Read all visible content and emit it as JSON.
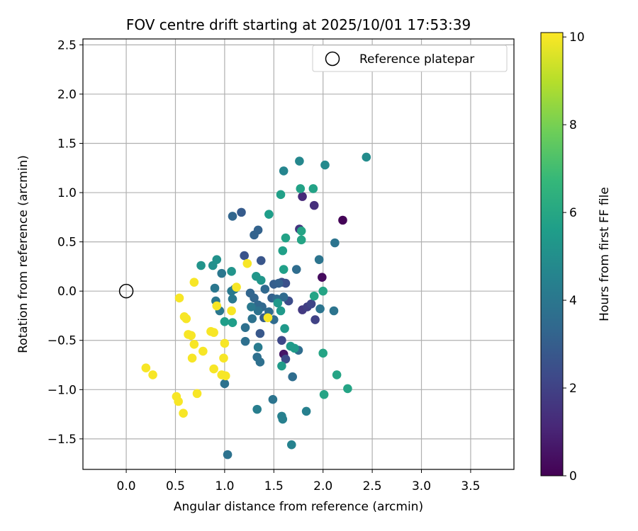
{
  "chart_data": {
    "type": "scatter",
    "title": "FOV centre drift starting at 2025/10/01 17:53:39",
    "xlabel": "Angular distance from reference (arcmin)",
    "ylabel": "Rotation from reference (arcmin)",
    "xlim": [
      -0.44,
      3.94
    ],
    "ylim": [
      -1.81,
      2.56
    ],
    "xticks": [
      0.0,
      0.5,
      1.0,
      1.5,
      2.0,
      2.5,
      3.0,
      3.5
    ],
    "xtick_labels": [
      "0.0",
      "0.5",
      "1.0",
      "1.5",
      "2.0",
      "2.5",
      "3.0",
      "3.5"
    ],
    "yticks": [
      -1.5,
      -1.0,
      -0.5,
      0.0,
      0.5,
      1.0,
      1.5,
      2.0,
      2.5
    ],
    "ytick_labels": [
      "−1.5",
      "−1.0",
      "−0.5",
      "0.0",
      "0.5",
      "1.0",
      "1.5",
      "2.0",
      "2.5"
    ],
    "grid": true,
    "legend": {
      "placement": "top-right",
      "entries": [
        "Reference platepar"
      ]
    },
    "reference_point": {
      "label": "Reference platepar",
      "x": 0.0,
      "y": 0.0
    },
    "colorbar": {
      "label": "Hours from first FF file",
      "colormap": "viridis",
      "range": [
        0,
        10.1
      ],
      "ticks": [
        0,
        2,
        4,
        6,
        8,
        10
      ],
      "tick_labels": [
        "0",
        "2",
        "4",
        "6",
        "8",
        "10"
      ]
    },
    "colormap_stops": [
      "#440154",
      "#482878",
      "#3e4989",
      "#31688e",
      "#26828e",
      "#1f9e89",
      "#35b779",
      "#6ece58",
      "#b5de2b",
      "#fde725"
    ],
    "points": [
      {
        "x": 2.2,
        "y": 0.72,
        "h": 0.1
      },
      {
        "x": 1.99,
        "y": 0.14,
        "h": 0.3
      },
      {
        "x": 1.6,
        "y": -0.64,
        "h": 0.6
      },
      {
        "x": 1.79,
        "y": 0.96,
        "h": 1.2
      },
      {
        "x": 1.91,
        "y": 0.87,
        "h": 1.4
      },
      {
        "x": 1.76,
        "y": 0.63,
        "h": 1.6
      },
      {
        "x": 1.79,
        "y": -0.19,
        "h": 1.7
      },
      {
        "x": 1.84,
        "y": -0.16,
        "h": 1.9
      },
      {
        "x": 1.92,
        "y": -0.29,
        "h": 2.0
      },
      {
        "x": 1.88,
        "y": -0.13,
        "h": 2.1
      },
      {
        "x": 1.58,
        "y": -0.5,
        "h": 2.2
      },
      {
        "x": 1.62,
        "y": -0.69,
        "h": 2.3
      },
      {
        "x": 1.65,
        "y": -0.1,
        "h": 2.4
      },
      {
        "x": 1.58,
        "y": 0.09,
        "h": 2.5
      },
      {
        "x": 1.62,
        "y": 0.08,
        "h": 2.5
      },
      {
        "x": 1.2,
        "y": 0.36,
        "h": 2.6
      },
      {
        "x": 1.37,
        "y": 0.31,
        "h": 2.7
      },
      {
        "x": 1.36,
        "y": -0.43,
        "h": 2.8
      },
      {
        "x": 1.17,
        "y": 0.8,
        "h": 2.9
      },
      {
        "x": 1.4,
        "y": -0.27,
        "h": 3.0
      },
      {
        "x": 1.5,
        "y": 0.07,
        "h": 3.0
      },
      {
        "x": 1.55,
        "y": 0.08,
        "h": 3.1
      },
      {
        "x": 1.48,
        "y": -0.07,
        "h": 3.1
      },
      {
        "x": 1.3,
        "y": 0.57,
        "h": 3.2
      },
      {
        "x": 1.34,
        "y": 0.62,
        "h": 3.2
      },
      {
        "x": 1.08,
        "y": 0.76,
        "h": 3.3
      },
      {
        "x": 1.26,
        "y": -0.02,
        "h": 3.3
      },
      {
        "x": 1.3,
        "y": -0.07,
        "h": 3.3
      },
      {
        "x": 1.34,
        "y": -0.14,
        "h": 3.4
      },
      {
        "x": 1.38,
        "y": -0.16,
        "h": 3.4
      },
      {
        "x": 1.41,
        "y": 0.02,
        "h": 3.4
      },
      {
        "x": 1.45,
        "y": -0.21,
        "h": 3.5
      },
      {
        "x": 1.5,
        "y": -0.29,
        "h": 3.5
      },
      {
        "x": 1.53,
        "y": -0.08,
        "h": 3.5
      },
      {
        "x": 1.6,
        "y": -0.06,
        "h": 3.5
      },
      {
        "x": 1.73,
        "y": 0.22,
        "h": 3.6
      },
      {
        "x": 1.75,
        "y": -0.6,
        "h": 3.6
      },
      {
        "x": 1.69,
        "y": -0.87,
        "h": 3.6
      },
      {
        "x": 1.36,
        "y": -0.72,
        "h": 3.7
      },
      {
        "x": 1.33,
        "y": -0.67,
        "h": 3.7
      },
      {
        "x": 1.21,
        "y": -0.51,
        "h": 3.7
      },
      {
        "x": 1.21,
        "y": -0.37,
        "h": 3.7
      },
      {
        "x": 1.28,
        "y": -0.28,
        "h": 3.8
      },
      {
        "x": 1.34,
        "y": -0.2,
        "h": 3.8
      },
      {
        "x": 1.0,
        "y": -0.94,
        "h": 3.8
      },
      {
        "x": 1.03,
        "y": -1.66,
        "h": 3.8
      },
      {
        "x": 1.49,
        "y": -1.1,
        "h": 3.9
      },
      {
        "x": 1.97,
        "y": -0.18,
        "h": 3.9
      },
      {
        "x": 2.11,
        "y": -0.2,
        "h": 3.9
      },
      {
        "x": 2.12,
        "y": 0.49,
        "h": 3.9
      },
      {
        "x": 1.96,
        "y": 0.32,
        "h": 3.9
      },
      {
        "x": 0.9,
        "y": 0.03,
        "h": 4.0
      },
      {
        "x": 0.91,
        "y": -0.1,
        "h": 4.0
      },
      {
        "x": 0.95,
        "y": -0.2,
        "h": 4.0
      },
      {
        "x": 0.97,
        "y": 0.18,
        "h": 4.0
      },
      {
        "x": 1.07,
        "y": 0.0,
        "h": 4.1
      },
      {
        "x": 1.1,
        "y": 0.02,
        "h": 4.1
      },
      {
        "x": 1.08,
        "y": -0.08,
        "h": 4.1
      },
      {
        "x": 1.27,
        "y": -0.16,
        "h": 4.1
      },
      {
        "x": 1.34,
        "y": -0.57,
        "h": 4.2
      },
      {
        "x": 1.33,
        "y": -1.2,
        "h": 4.3
      },
      {
        "x": 1.58,
        "y": -1.27,
        "h": 4.4
      },
      {
        "x": 1.59,
        "y": -1.3,
        "h": 4.4
      },
      {
        "x": 1.83,
        "y": -1.22,
        "h": 4.4
      },
      {
        "x": 1.68,
        "y": -1.56,
        "h": 4.5
      },
      {
        "x": 1.6,
        "y": 1.22,
        "h": 4.6
      },
      {
        "x": 1.76,
        "y": 1.32,
        "h": 4.7
      },
      {
        "x": 2.02,
        "y": 1.28,
        "h": 4.8
      },
      {
        "x": 2.44,
        "y": 1.36,
        "h": 4.9
      },
      {
        "x": 0.88,
        "y": 0.26,
        "h": 5.0
      },
      {
        "x": 0.92,
        "y": 0.32,
        "h": 5.1
      },
      {
        "x": 0.76,
        "y": 0.26,
        "h": 5.2
      },
      {
        "x": 1.07,
        "y": 0.2,
        "h": 5.2
      },
      {
        "x": 1.32,
        "y": 0.15,
        "h": 5.3
      },
      {
        "x": 1.37,
        "y": 0.11,
        "h": 5.3
      },
      {
        "x": 1.54,
        "y": -0.12,
        "h": 5.4
      },
      {
        "x": 1.57,
        "y": -0.2,
        "h": 5.4
      },
      {
        "x": 1.61,
        "y": -0.38,
        "h": 5.4
      },
      {
        "x": 1.67,
        "y": -0.56,
        "h": 5.5
      },
      {
        "x": 1.71,
        "y": -0.58,
        "h": 5.5
      },
      {
        "x": 1.58,
        "y": -0.76,
        "h": 5.5
      },
      {
        "x": 1.0,
        "y": -0.31,
        "h": 5.6
      },
      {
        "x": 1.08,
        "y": -0.32,
        "h": 5.6
      },
      {
        "x": 1.45,
        "y": 0.78,
        "h": 5.6
      },
      {
        "x": 1.57,
        "y": 0.98,
        "h": 5.7
      },
      {
        "x": 1.59,
        "y": 0.41,
        "h": 5.7
      },
      {
        "x": 1.6,
        "y": 0.22,
        "h": 5.7
      },
      {
        "x": 1.62,
        "y": 0.54,
        "h": 5.8
      },
      {
        "x": 1.77,
        "y": 1.04,
        "h": 5.8
      },
      {
        "x": 1.9,
        "y": 1.04,
        "h": 5.8
      },
      {
        "x": 1.78,
        "y": 0.61,
        "h": 5.9
      },
      {
        "x": 1.78,
        "y": 0.52,
        "h": 5.9
      },
      {
        "x": 1.91,
        "y": -0.05,
        "h": 5.9
      },
      {
        "x": 2.0,
        "y": 0.0,
        "h": 5.9
      },
      {
        "x": 2.0,
        "y": -0.63,
        "h": 5.9
      },
      {
        "x": 2.14,
        "y": -0.85,
        "h": 5.9
      },
      {
        "x": 2.25,
        "y": -0.99,
        "h": 5.9
      },
      {
        "x": 2.01,
        "y": -1.05,
        "h": 5.9
      },
      {
        "x": 0.69,
        "y": 0.09,
        "h": 10.0
      },
      {
        "x": 0.54,
        "y": -0.07,
        "h": 10.0
      },
      {
        "x": 0.59,
        "y": -0.26,
        "h": 10.0
      },
      {
        "x": 0.61,
        "y": -0.28,
        "h": 10.0
      },
      {
        "x": 0.63,
        "y": -0.44,
        "h": 10.0
      },
      {
        "x": 0.66,
        "y": -0.45,
        "h": 10.0
      },
      {
        "x": 0.69,
        "y": -0.54,
        "h": 10.0
      },
      {
        "x": 0.78,
        "y": -0.61,
        "h": 10.0
      },
      {
        "x": 0.86,
        "y": -0.41,
        "h": 10.0
      },
      {
        "x": 0.89,
        "y": -0.42,
        "h": 10.0
      },
      {
        "x": 0.92,
        "y": -0.15,
        "h": 10.0
      },
      {
        "x": 1.0,
        "y": -0.53,
        "h": 10.0
      },
      {
        "x": 0.99,
        "y": -0.68,
        "h": 10.0
      },
      {
        "x": 0.67,
        "y": -0.68,
        "h": 10.0
      },
      {
        "x": 0.89,
        "y": -0.79,
        "h": 10.0
      },
      {
        "x": 0.97,
        "y": -0.85,
        "h": 10.0
      },
      {
        "x": 1.01,
        "y": -0.86,
        "h": 10.0
      },
      {
        "x": 0.2,
        "y": -0.78,
        "h": 10.0
      },
      {
        "x": 0.27,
        "y": -0.85,
        "h": 10.0
      },
      {
        "x": 0.51,
        "y": -1.07,
        "h": 10.0
      },
      {
        "x": 0.53,
        "y": -1.12,
        "h": 10.0
      },
      {
        "x": 0.58,
        "y": -1.24,
        "h": 10.0
      },
      {
        "x": 0.72,
        "y": -1.04,
        "h": 10.0
      },
      {
        "x": 1.07,
        "y": -0.2,
        "h": 10.0
      },
      {
        "x": 1.12,
        "y": 0.04,
        "h": 10.0
      },
      {
        "x": 1.23,
        "y": 0.28,
        "h": 10.0
      },
      {
        "x": 1.44,
        "y": -0.27,
        "h": 10.0
      }
    ]
  }
}
